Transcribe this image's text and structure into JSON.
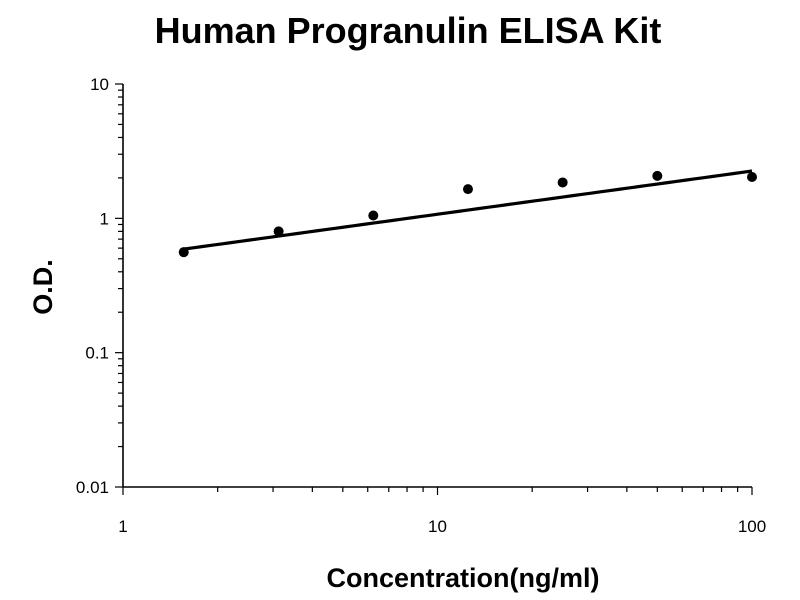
{
  "chart_data": {
    "type": "scatter",
    "title": "Human Progranulin ELISA Kit",
    "xlabel": "Concentration(ng/ml)",
    "ylabel": "O.D.",
    "x_scale": "log",
    "y_scale": "log",
    "xlim": [
      1,
      100
    ],
    "ylim": [
      0.01,
      10
    ],
    "x_tick_labels": [
      "1",
      "10",
      "100"
    ],
    "y_tick_labels": [
      "10",
      "1",
      "0.1",
      "0.01"
    ],
    "grid": false,
    "series": [
      {
        "x": [
          1.56,
          3.125,
          6.25,
          12.5,
          25,
          50,
          100
        ],
        "y": [
          0.56,
          0.8,
          1.05,
          1.65,
          1.85,
          2.07,
          2.03
        ]
      }
    ],
    "fit_curve": {
      "type": "power",
      "x": [
        1.56,
        100
      ],
      "y": [
        0.59,
        2.25
      ]
    }
  }
}
